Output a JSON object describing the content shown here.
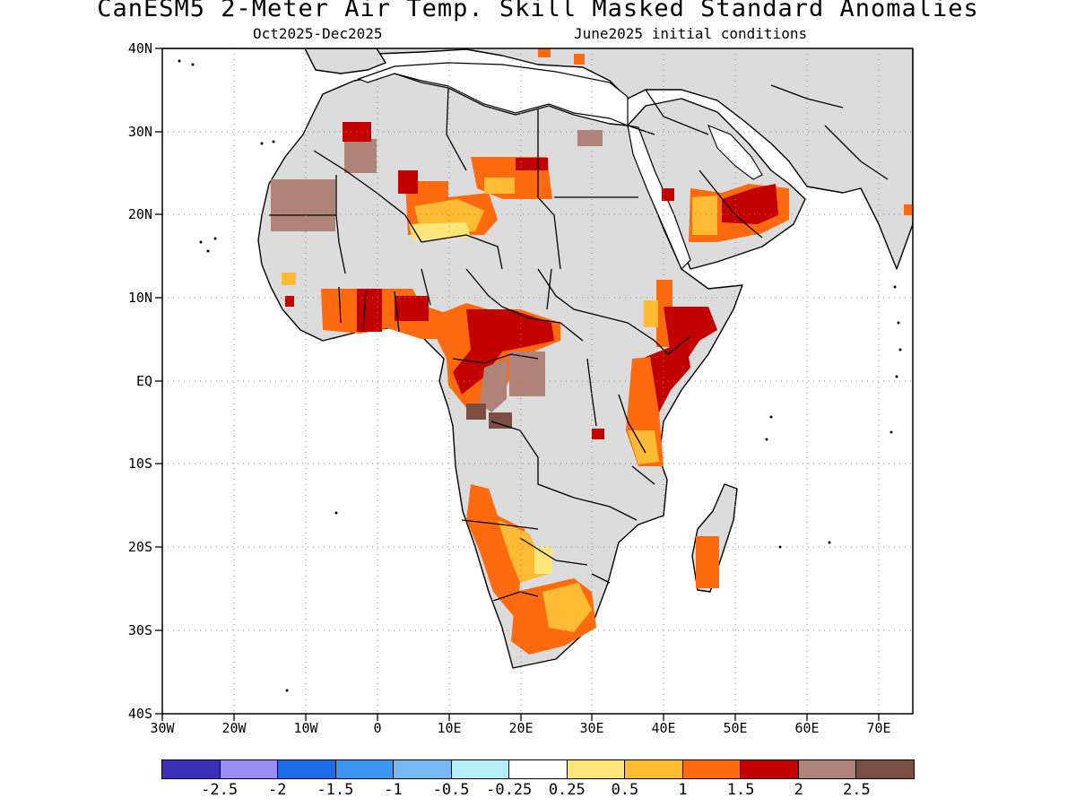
{
  "title": "CanESM5 2-Meter Air Temp. Skill Masked Standard Anomalies",
  "subtitle_left": "Oct2025-Dec2025",
  "subtitle_right": "June2025 initial conditions",
  "y_ticks": [
    "40N",
    "30N",
    "20N",
    "10N",
    "EQ",
    "10S",
    "20S",
    "30S",
    "40S"
  ],
  "x_ticks": [
    "30W",
    "20W",
    "10W",
    "0",
    "10E",
    "20E",
    "30E",
    "40E",
    "50E",
    "60E",
    "70E"
  ],
  "colorbar": {
    "colors": [
      "#3a2fb8",
      "#9b8bf5",
      "#1f6ae6",
      "#3c95f0",
      "#77b8f5",
      "#b3eef9",
      "#ffffff",
      "#ffe47a",
      "#ffbb33",
      "#ff6a0f",
      "#c20000",
      "#b08378",
      "#7a4e42"
    ],
    "labels": [
      "-2.5",
      "-2",
      "-1.5",
      "-1",
      "-0.5",
      "-0.25",
      "0.25",
      "0.5",
      "1",
      "1.5",
      "2",
      "2.5"
    ]
  }
}
